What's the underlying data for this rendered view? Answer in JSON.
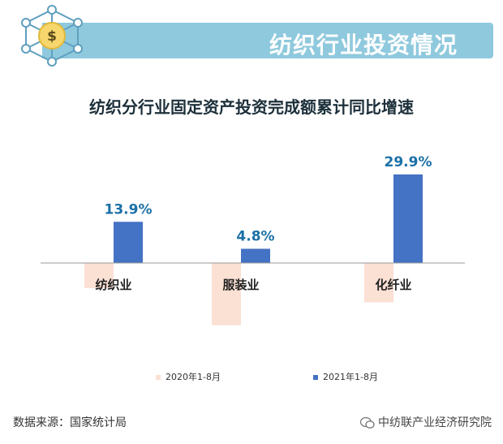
{
  "header": {
    "title": "纺织行业投资情况",
    "badge_icon": "dollar-network-icon"
  },
  "colors": {
    "bar_2020": "#fbe0d4",
    "bar_2021": "#4472c4",
    "label_2021": "#1b70a6",
    "banner": "#8fc9dd"
  },
  "chart_data": {
    "type": "bar",
    "title": "纺织分行业固定资产投资完成额累计同比增速",
    "categories": [
      "纺织业",
      "服装业",
      "化纤业"
    ],
    "series": [
      {
        "name": "2020年1-8月",
        "values": [
          -8.5,
          -21.0,
          -13.3
        ]
      },
      {
        "name": "2021年1-8月",
        "values": [
          13.9,
          4.8,
          29.9
        ]
      }
    ],
    "data_labels": [
      "13.9%",
      "4.8%",
      "29.9%"
    ],
    "ylim": [
      -23,
      31
    ],
    "legend": "bottom",
    "grid": false
  },
  "footer": {
    "source": "数据来源：国家统计局",
    "watermark": "中纺联产业经济研究院"
  }
}
